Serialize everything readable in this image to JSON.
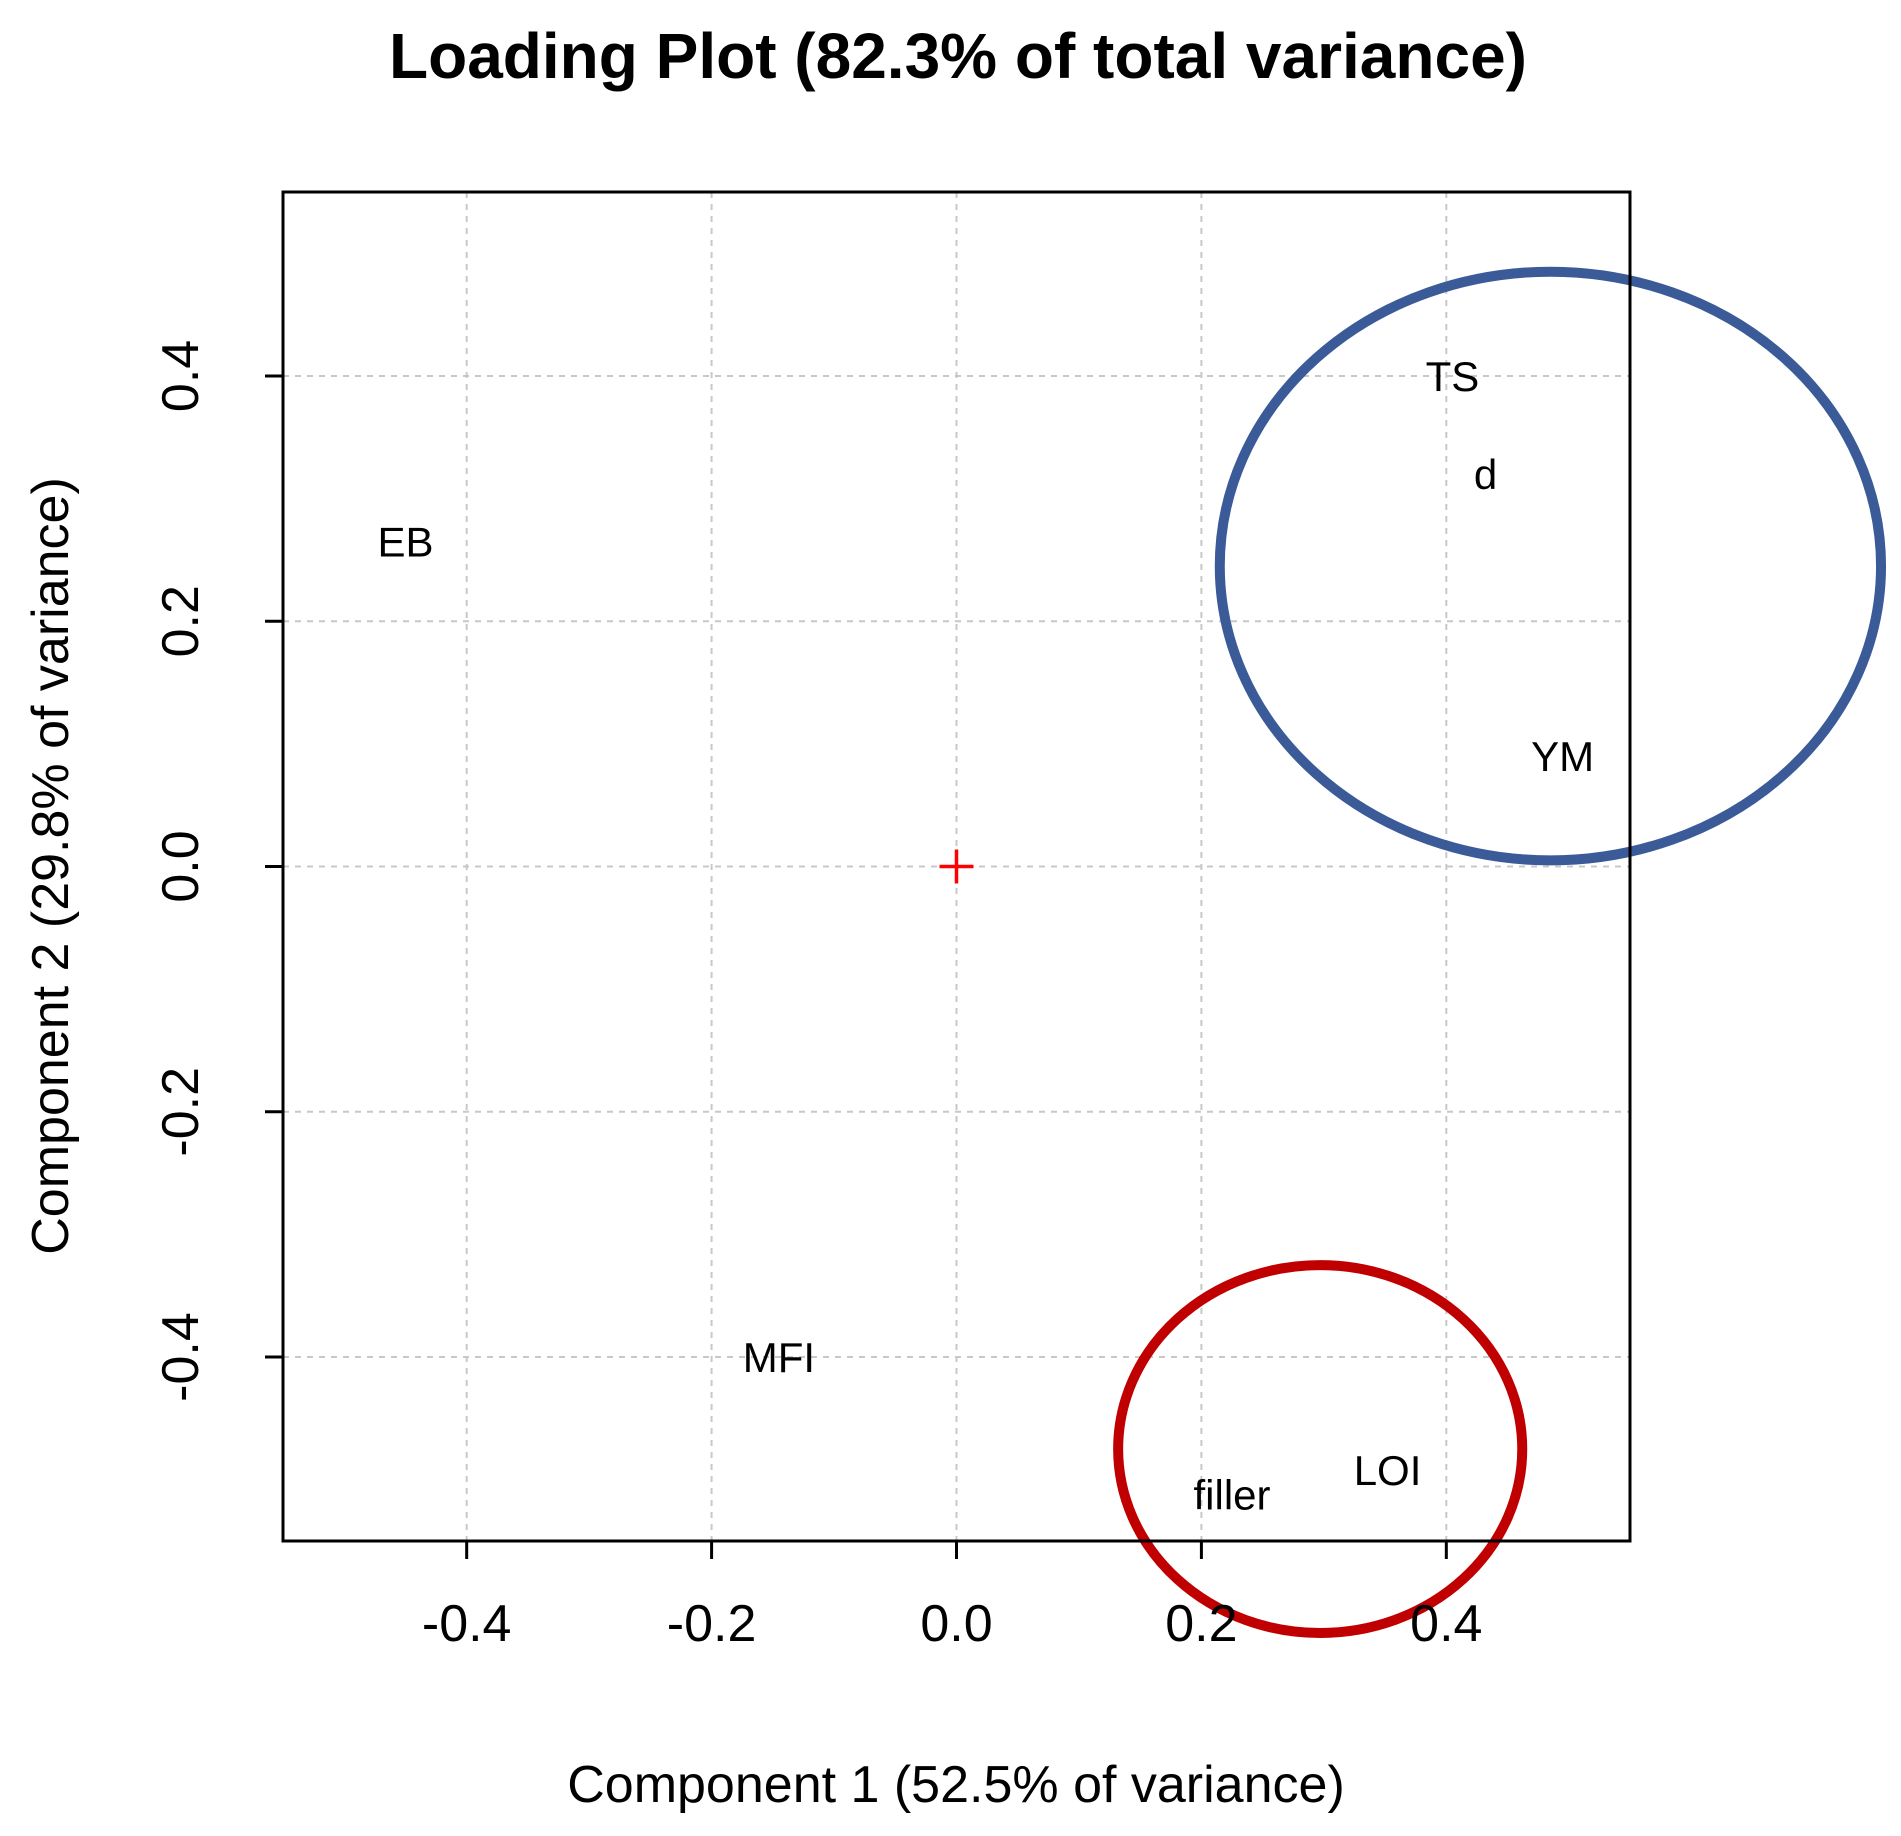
{
  "chart_data": {
    "type": "scatter",
    "title": "Loading Plot (82.3% of total variance)",
    "xlabel": "Component 1 (52.5% of variance)",
    "ylabel": "Component 2 (29.8% of variance)",
    "xlim": [
      -0.55,
      0.55
    ],
    "ylim": [
      -0.55,
      0.55
    ],
    "xticks": [
      -0.4,
      -0.2,
      0.0,
      0.2,
      0.4
    ],
    "yticks": [
      -0.4,
      -0.2,
      0.0,
      0.2,
      0.4
    ],
    "xtick_labels": [
      "-0.4",
      "-0.2",
      "0.0",
      "0.2",
      "0.4"
    ],
    "ytick_labels": [
      "-0.4",
      "-0.2",
      "0.0",
      "0.2",
      "0.4"
    ],
    "grid": true,
    "points": [
      {
        "label": "EB",
        "x": -0.45,
        "y": 0.265
      },
      {
        "label": "TS",
        "x": 0.405,
        "y": 0.4
      },
      {
        "label": "d",
        "x": 0.432,
        "y": 0.32
      },
      {
        "label": "YM",
        "x": 0.495,
        "y": 0.09
      },
      {
        "label": "MFI",
        "x": -0.145,
        "y": -0.4
      },
      {
        "label": "filler",
        "x": 0.225,
        "y": -0.512
      },
      {
        "label": "LOI",
        "x": 0.352,
        "y": -0.492
      }
    ],
    "origin_marker": {
      "x": 0.0,
      "y": 0.0,
      "symbol": "+",
      "color": "#ff0000"
    },
    "highlights": [
      {
        "name": "blue-group",
        "color": "#3a5a98",
        "cx": 0.485,
        "cy": 0.245,
        "rx": 0.27,
        "ry": 0.24,
        "members": [
          "TS",
          "d",
          "YM"
        ]
      },
      {
        "name": "red-group",
        "color": "#c00000",
        "cx": 0.297,
        "cy": -0.475,
        "rx": 0.165,
        "ry": 0.15,
        "members": [
          "filler",
          "LOI"
        ]
      }
    ]
  }
}
